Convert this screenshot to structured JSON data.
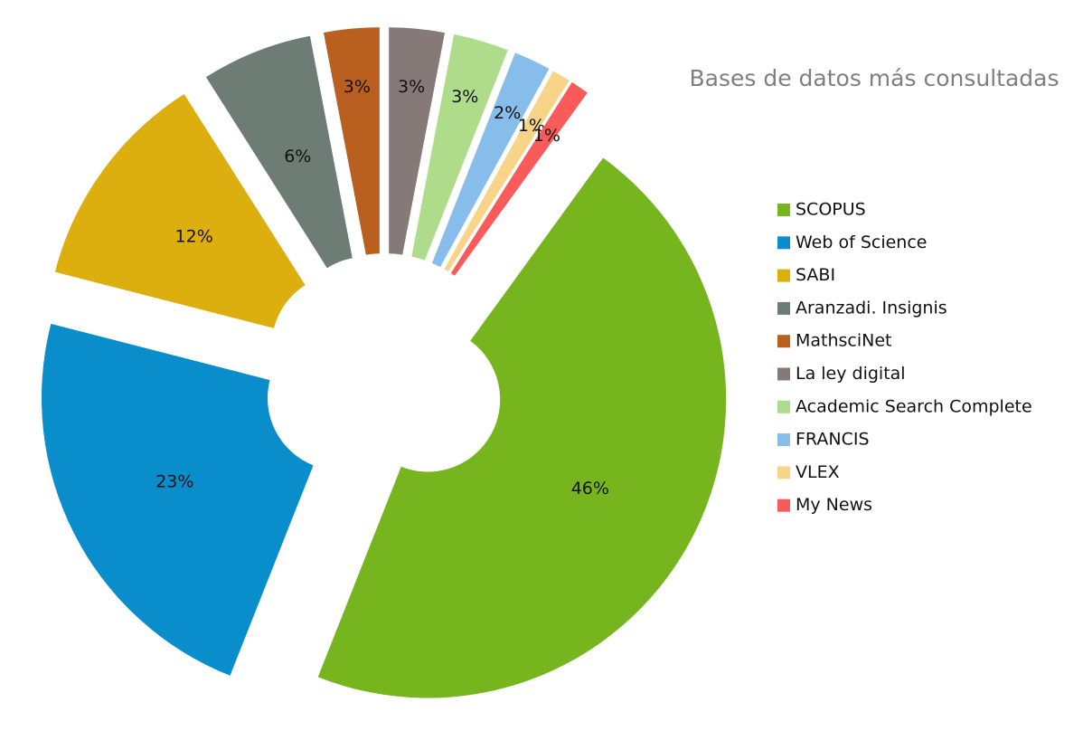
{
  "chart_data": {
    "type": "doughnut",
    "title": "Bases de datos más consultadas",
    "categories": [
      "SCOPUS",
      "Web of Science",
      "SABI",
      "Aranzadi. Insignis",
      "MathsciNet",
      "La ley digital",
      "Academic Search Complete",
      "FRANCIS",
      "VLEX",
      "My News"
    ],
    "values": [
      46,
      23,
      12,
      6,
      3,
      3,
      3,
      2,
      1,
      1
    ],
    "value_labels": [
      "46%",
      "23%",
      "12%",
      "6%",
      "3%",
      "3%",
      "3%",
      "2%",
      "1%",
      "1%"
    ],
    "colors": [
      "#77b51e",
      "#0a8ecb",
      "#dcae0e",
      "#6e7c76",
      "#b95f1f",
      "#857a77",
      "#aedc8a",
      "#86bdea",
      "#f8d489",
      "#f95a5a"
    ],
    "legend": "right"
  }
}
